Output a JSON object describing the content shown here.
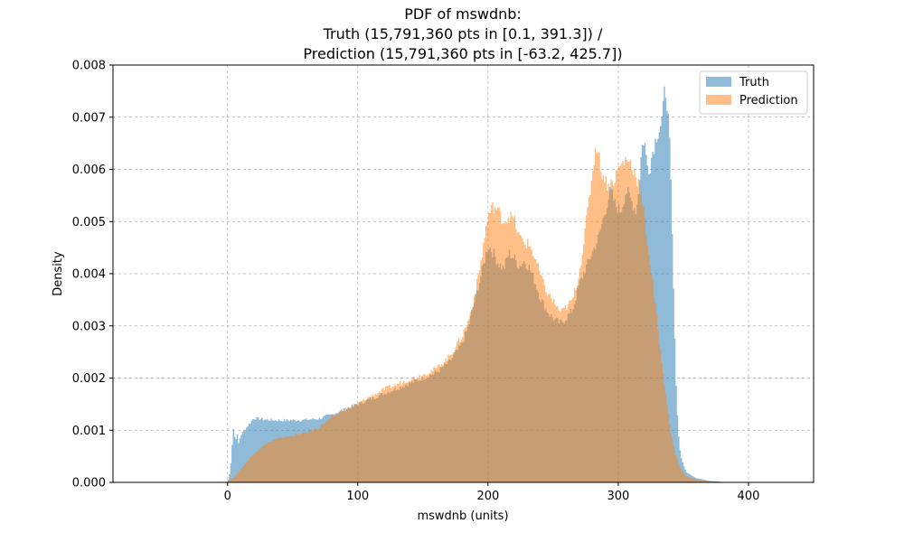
{
  "chart_data": {
    "type": "area",
    "title": [
      "PDF of mswdnb:",
      "Truth (15,791,360 pts in [0.1, 391.3]) /",
      "Prediction (15,791,360 pts in [-63.2, 425.7])"
    ],
    "xlabel": "mswdnb (units)",
    "ylabel": "Density",
    "xlim": [
      -88,
      450
    ],
    "ylim": [
      0,
      0.008
    ],
    "xticks": [
      0,
      100,
      200,
      300,
      400
    ],
    "yticks": [
      0.0,
      0.001,
      0.002,
      0.003,
      0.004,
      0.005,
      0.006,
      0.007,
      0.008
    ],
    "ytick_labels": [
      "0.000",
      "0.001",
      "0.002",
      "0.003",
      "0.004",
      "0.005",
      "0.006",
      "0.007",
      "0.008"
    ],
    "grid": true,
    "legend_position": "top-right",
    "series": [
      {
        "name": "Truth",
        "color": "#1f77b4",
        "opacity": 0.5,
        "points": [
          [
            0,
            0
          ],
          [
            2,
            0.0002
          ],
          [
            4,
            0.0009
          ],
          [
            5,
            0.00115
          ],
          [
            6,
            0.0006
          ],
          [
            7,
            0.0011
          ],
          [
            8,
            0.0007
          ],
          [
            10,
            0.0009
          ],
          [
            13,
            0.001
          ],
          [
            16,
            0.0011
          ],
          [
            20,
            0.00123
          ],
          [
            25,
            0.00122
          ],
          [
            30,
            0.0012
          ],
          [
            40,
            0.00119
          ],
          [
            50,
            0.00119
          ],
          [
            60,
            0.0012
          ],
          [
            70,
            0.00122
          ],
          [
            80,
            0.0013
          ],
          [
            90,
            0.0014
          ],
          [
            100,
            0.0015
          ],
          [
            110,
            0.0016
          ],
          [
            120,
            0.0017
          ],
          [
            130,
            0.0018
          ],
          [
            140,
            0.0019
          ],
          [
            150,
            0.002
          ],
          [
            160,
            0.0021
          ],
          [
            170,
            0.0023
          ],
          [
            180,
            0.00265
          ],
          [
            185,
            0.003
          ],
          [
            190,
            0.0035
          ],
          [
            195,
            0.004
          ],
          [
            200,
            0.00455
          ],
          [
            204,
            0.0044
          ],
          [
            208,
            0.0042
          ],
          [
            212,
            0.0041
          ],
          [
            216,
            0.0044
          ],
          [
            220,
            0.0043
          ],
          [
            224,
            0.00415
          ],
          [
            228,
            0.00425
          ],
          [
            232,
            0.0041
          ],
          [
            236,
            0.00385
          ],
          [
            240,
            0.00355
          ],
          [
            244,
            0.00335
          ],
          [
            248,
            0.0032
          ],
          [
            252,
            0.0031
          ],
          [
            256,
            0.00305
          ],
          [
            260,
            0.00315
          ],
          [
            265,
            0.0033
          ],
          [
            270,
            0.0038
          ],
          [
            275,
            0.0041
          ],
          [
            280,
            0.0044
          ],
          [
            285,
            0.0047
          ],
          [
            290,
            0.0052
          ],
          [
            294,
            0.0056
          ],
          [
            298,
            0.0053
          ],
          [
            302,
            0.0052
          ],
          [
            306,
            0.0056
          ],
          [
            310,
            0.0054
          ],
          [
            314,
            0.0052
          ],
          [
            316,
            0.0057
          ],
          [
            318,
            0.0064
          ],
          [
            320,
            0.0066
          ],
          [
            322,
            0.0061
          ],
          [
            324,
            0.006
          ],
          [
            326,
            0.0063
          ],
          [
            328,
            0.0065
          ],
          [
            330,
            0.0067
          ],
          [
            332,
            0.0068
          ],
          [
            334,
            0.007
          ],
          [
            336,
            0.0076
          ],
          [
            338,
            0.0072
          ],
          [
            340,
            0.0062
          ],
          [
            342,
            0.0042
          ],
          [
            344,
            0.0022
          ],
          [
            346,
            0.001
          ],
          [
            348,
            0.0005
          ],
          [
            352,
            0.0002
          ],
          [
            360,
            8e-05
          ],
          [
            370,
            3e-05
          ],
          [
            380,
            1e-05
          ],
          [
            391,
            0
          ]
        ]
      },
      {
        "name": "Prediction",
        "color": "#ff7f0e",
        "opacity": 0.5,
        "points": [
          [
            -5,
            0
          ],
          [
            0,
            2e-05
          ],
          [
            5,
            0.0001
          ],
          [
            10,
            0.00025
          ],
          [
            15,
            0.0004
          ],
          [
            20,
            0.00055
          ],
          [
            30,
            0.00075
          ],
          [
            40,
            0.00085
          ],
          [
            50,
            0.0009
          ],
          [
            60,
            0.00095
          ],
          [
            70,
            0.00105
          ],
          [
            80,
            0.00125
          ],
          [
            90,
            0.0014
          ],
          [
            100,
            0.0015
          ],
          [
            110,
            0.00165
          ],
          [
            120,
            0.00178
          ],
          [
            130,
            0.00188
          ],
          [
            140,
            0.00198
          ],
          [
            150,
            0.00206
          ],
          [
            160,
            0.00218
          ],
          [
            170,
            0.0024
          ],
          [
            180,
            0.0028
          ],
          [
            185,
            0.0031
          ],
          [
            190,
            0.0036
          ],
          [
            195,
            0.0043
          ],
          [
            198,
            0.0048
          ],
          [
            200,
            0.0051
          ],
          [
            204,
            0.0053
          ],
          [
            208,
            0.0052
          ],
          [
            212,
            0.005
          ],
          [
            216,
            0.0051
          ],
          [
            220,
            0.00505
          ],
          [
            224,
            0.0047
          ],
          [
            228,
            0.0046
          ],
          [
            232,
            0.00455
          ],
          [
            236,
            0.0043
          ],
          [
            240,
            0.004
          ],
          [
            244,
            0.0037
          ],
          [
            248,
            0.00355
          ],
          [
            252,
            0.0034
          ],
          [
            256,
            0.00325
          ],
          [
            260,
            0.00335
          ],
          [
            265,
            0.0035
          ],
          [
            270,
            0.004
          ],
          [
            274,
            0.0047
          ],
          [
            278,
            0.0055
          ],
          [
            282,
            0.0063
          ],
          [
            284,
            0.0065
          ],
          [
            286,
            0.0061
          ],
          [
            288,
            0.0059
          ],
          [
            292,
            0.0057
          ],
          [
            296,
            0.00575
          ],
          [
            300,
            0.006
          ],
          [
            304,
            0.00615
          ],
          [
            308,
            0.0062
          ],
          [
            312,
            0.006
          ],
          [
            316,
            0.0057
          ],
          [
            320,
            0.0051
          ],
          [
            324,
            0.0043
          ],
          [
            328,
            0.0035
          ],
          [
            332,
            0.0026
          ],
          [
            336,
            0.0018
          ],
          [
            340,
            0.001
          ],
          [
            344,
            0.00055
          ],
          [
            348,
            0.00025
          ],
          [
            352,
            0.00012
          ],
          [
            360,
            5e-05
          ],
          [
            370,
            2e-05
          ],
          [
            385,
            5e-06
          ],
          [
            400,
            1e-06
          ],
          [
            425,
            0
          ]
        ]
      }
    ]
  }
}
